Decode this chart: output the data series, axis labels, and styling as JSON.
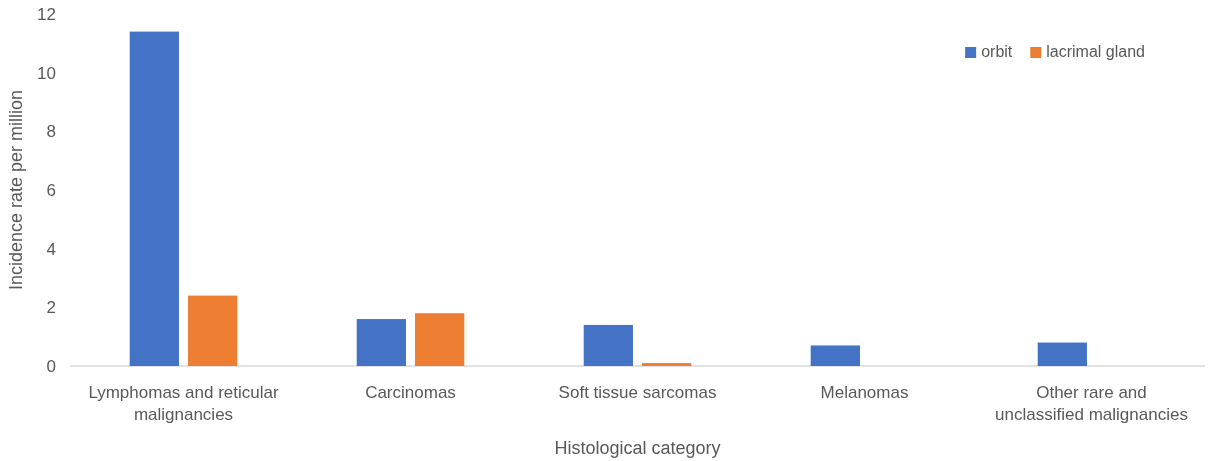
{
  "chart_data": {
    "type": "bar",
    "xlabel": "Histological category",
    "ylabel": "Incidence rate per million",
    "categories": [
      "Lymphomas and reticular malignancies",
      "Carcinomas",
      "Soft tissue sarcomas",
      "Melanomas",
      "Other rare and unclassified malignancies"
    ],
    "series": [
      {
        "name": "orbit",
        "color": "#4472c4",
        "values": [
          11.4,
          1.6,
          1.4,
          0.7,
          0.8
        ]
      },
      {
        "name": "lacrimal gland",
        "color": "#ed7d31",
        "values": [
          2.4,
          1.8,
          0.1,
          null,
          null
        ]
      }
    ],
    "ylim": [
      0,
      12
    ],
    "yticks": [
      0,
      2,
      4,
      6,
      8,
      10,
      12
    ],
    "legend": "top right"
  }
}
